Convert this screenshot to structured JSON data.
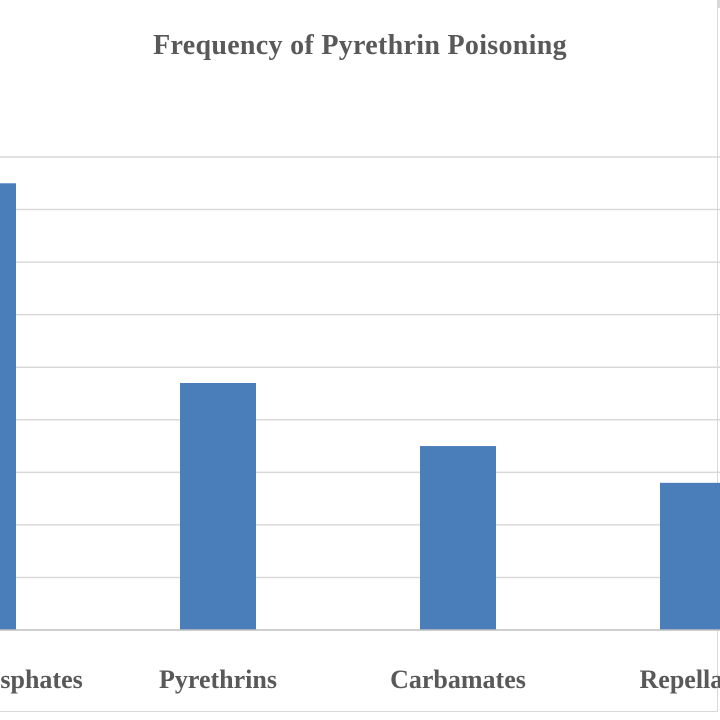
{
  "chart_data": {
    "type": "bar",
    "title": "Frequency of Pyrethrin Poisoning",
    "categories": [
      "Organophosphates",
      "Pyrethrins",
      "Carbamates",
      "Repellants"
    ],
    "values": [
      85,
      47,
      35,
      28
    ],
    "ylim": [
      0,
      90
    ],
    "grid": true,
    "bar_color": "#4a7ebb",
    "gridline_color": "#d9d9d9",
    "axis_color": "#bfbfbf",
    "text_color": "#595959"
  }
}
